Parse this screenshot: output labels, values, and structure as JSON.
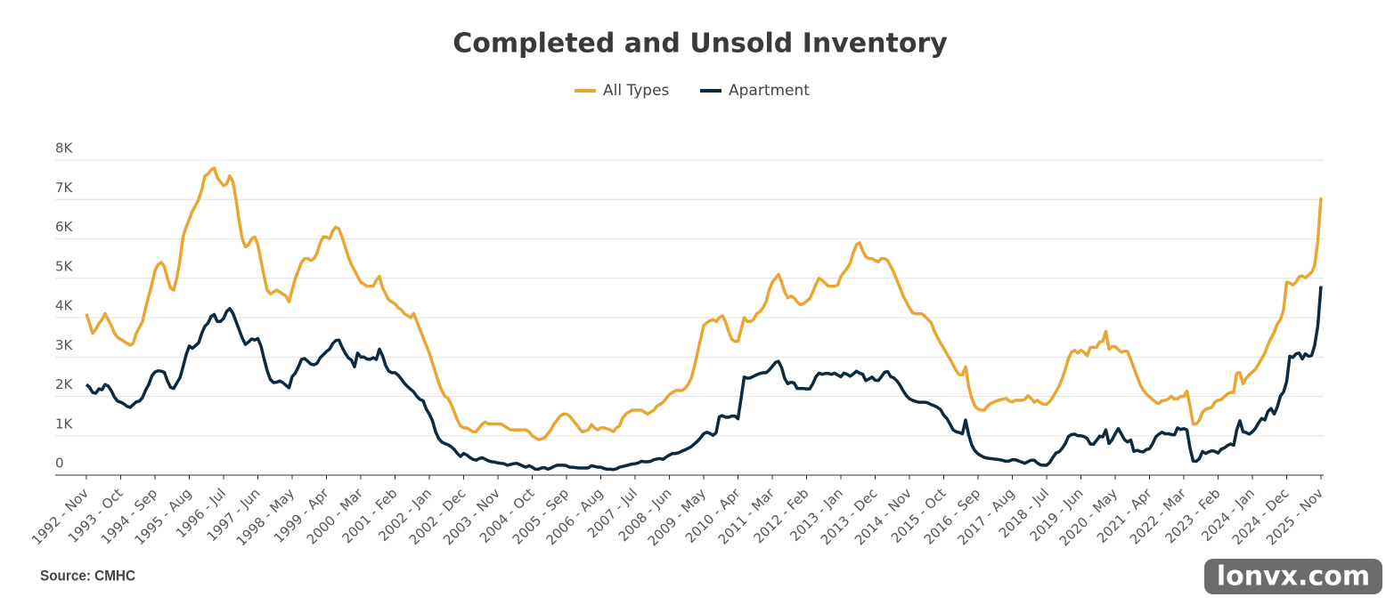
{
  "chart_data": {
    "type": "line",
    "title": "Completed and Unsold Inventory",
    "source": "Source: CMHC",
    "legend": "top",
    "grid": true,
    "categories": [
      "1992 - Nov",
      null,
      null,
      null,
      null,
      null,
      null,
      null,
      null,
      null,
      null,
      "1993 - Oct",
      null,
      null,
      null,
      null,
      null,
      null,
      null,
      null,
      null,
      null,
      "1994 - Sep",
      null,
      null,
      null,
      null,
      null,
      null,
      null,
      null,
      null,
      null,
      "1995 - Aug",
      null,
      null,
      null,
      null,
      null,
      null,
      null,
      null,
      null,
      null,
      "1996 - Jul",
      null,
      null,
      null,
      null,
      null,
      null,
      null,
      null,
      null,
      null,
      "1997 - Jun",
      null,
      null,
      null,
      null,
      null,
      null,
      null,
      null,
      null,
      null,
      "1998 - May",
      null,
      null,
      null,
      null,
      null,
      null,
      null,
      null,
      null,
      null,
      "1999 - Apr",
      null,
      null,
      null,
      null,
      null,
      null,
      null,
      null,
      null,
      null,
      "2000 - Mar",
      null,
      null,
      null,
      null,
      null,
      null,
      null,
      null,
      null,
      null,
      "2001 - Feb",
      null,
      null,
      null,
      null,
      null,
      null,
      null,
      null,
      null,
      null,
      "2002 - Jan",
      null,
      null,
      null,
      null,
      null,
      null,
      null,
      null,
      null,
      null,
      "2002 - Dec",
      null,
      null,
      null,
      null,
      null,
      null,
      null,
      null,
      null,
      null,
      "2003 - Nov",
      null,
      null,
      null,
      null,
      null,
      null,
      null,
      null,
      null,
      null,
      "2004 - Oct",
      null,
      null,
      null,
      null,
      null,
      null,
      null,
      null,
      null,
      null,
      "2005 - Sep",
      null,
      null,
      null,
      null,
      null,
      null,
      null,
      null,
      null,
      null,
      "2006 - Aug",
      null,
      null,
      null,
      null,
      null,
      null,
      null,
      null,
      null,
      null,
      "2007 - Jul",
      null,
      null,
      null,
      null,
      null,
      null,
      null,
      null,
      null,
      null,
      "2008 - Jun",
      null,
      null,
      null,
      null,
      null,
      null,
      null,
      null,
      null,
      null,
      "2009 - May",
      null,
      null,
      null,
      null,
      null,
      null,
      null,
      null,
      null,
      null,
      "2010 - Apr",
      null,
      null,
      null,
      null,
      null,
      null,
      null,
      null,
      null,
      null,
      "2011 - Mar",
      null,
      null,
      null,
      null,
      null,
      null,
      null,
      null,
      null,
      null,
      "2012 - Feb",
      null,
      null,
      null,
      null,
      null,
      null,
      null,
      null,
      null,
      null,
      "2013 - Jan",
      null,
      null,
      null,
      null,
      null,
      null,
      null,
      null,
      null,
      null,
      "2013 - Dec",
      null,
      null,
      null,
      null,
      null,
      null,
      null,
      null,
      null,
      null,
      "2014 - Nov",
      null,
      null,
      null,
      null,
      null,
      null,
      null,
      null,
      null,
      null,
      "2015 - Oct",
      null,
      null,
      null,
      null,
      null,
      null,
      null,
      null,
      null,
      null,
      "2016 - Sep",
      null,
      null,
      null,
      null,
      null,
      null,
      null,
      null,
      null,
      null,
      "2017 - Aug",
      null,
      null,
      null,
      null,
      null,
      null,
      null,
      null,
      null,
      null,
      "2018 - Jul",
      null,
      null,
      null,
      null,
      null,
      null,
      null,
      null,
      null,
      null,
      "2019 - Jun",
      null,
      null,
      null,
      null,
      null,
      null,
      null,
      null,
      null,
      null,
      "2020 - May",
      null,
      null,
      null,
      null,
      null,
      null,
      null,
      null,
      null,
      null,
      "2021 - Apr",
      null,
      null,
      null,
      null,
      null,
      null,
      null,
      null,
      null,
      null,
      "2022 - Mar",
      null,
      null,
      null,
      null,
      null,
      null,
      null,
      null,
      null,
      null,
      "2023 - Feb",
      null,
      null,
      null,
      null,
      null,
      null,
      null,
      null,
      null,
      null,
      "2024 - Jan",
      null,
      null,
      null,
      null,
      null,
      null,
      null,
      null,
      null,
      null,
      "2024 - Dec",
      null,
      null,
      null,
      null,
      null,
      null,
      null,
      null,
      null,
      null,
      "2025 - Nov"
    ],
    "series": [
      {
        "name": "All Types",
        "color": "#e8a735",
        "values": [
          4100,
          3850,
          3600,
          3700,
          3850,
          3950,
          4100,
          3950,
          3800,
          3600,
          3500,
          3450,
          3400,
          3350,
          3300,
          3350,
          3600,
          3750,
          3900,
          4250,
          4550,
          4850,
          5200,
          5350,
          5400,
          5300,
          5000,
          4750,
          4700,
          5000,
          5450,
          6050,
          6300,
          6500,
          6700,
          6850,
          7000,
          7250,
          7600,
          7650,
          7750,
          7800,
          7550,
          7450,
          7350,
          7400,
          7600,
          7450,
          7000,
          6450,
          6000,
          5800,
          5850,
          6000,
          6050,
          5850,
          5450,
          5050,
          4700,
          4600,
          4650,
          4700,
          4650,
          4600,
          4550,
          4400,
          4700,
          5000,
          5200,
          5400,
          5500,
          5500,
          5450,
          5500,
          5650,
          5900,
          6050,
          6050,
          6000,
          6200,
          6300,
          6250,
          6050,
          5800,
          5550,
          5350,
          5200,
          5050,
          4900,
          4850,
          4800,
          4800,
          4800,
          4950,
          5050,
          4750,
          4600,
          4450,
          4400,
          4350,
          4250,
          4200,
          4100,
          4050,
          4000,
          4100,
          3900,
          3700,
          3500,
          3300,
          3100,
          2850,
          2600,
          2350,
          2150,
          2000,
          1950,
          1800,
          1600,
          1400,
          1250,
          1200,
          1200,
          1150,
          1100,
          1100,
          1200,
          1300,
          1350,
          1300,
          1300,
          1300,
          1300,
          1300,
          1250,
          1200,
          1150,
          1150,
          1150,
          1150,
          1150,
          1150,
          1100,
          1000,
          950,
          900,
          920,
          950,
          1050,
          1150,
          1300,
          1400,
          1500,
          1550,
          1550,
          1500,
          1400,
          1300,
          1200,
          1100,
          1120,
          1150,
          1280,
          1200,
          1150,
          1200,
          1200,
          1180,
          1150,
          1100,
          1200,
          1250,
          1450,
          1550,
          1600,
          1650,
          1650,
          1650,
          1650,
          1600,
          1550,
          1600,
          1650,
          1750,
          1800,
          1850,
          1950,
          2050,
          2100,
          2150,
          2150,
          2150,
          2200,
          2300,
          2450,
          2750,
          3100,
          3450,
          3800,
          3870,
          3920,
          3950,
          3900,
          4000,
          4050,
          3900,
          3650,
          3450,
          3400,
          3400,
          3700,
          4000,
          3900,
          3900,
          3950,
          4100,
          4150,
          4250,
          4400,
          4700,
          4900,
          5000,
          5100,
          4900,
          4650,
          4500,
          4550,
          4500,
          4400,
          4330,
          4350,
          4420,
          4480,
          4650,
          4850,
          5000,
          4950,
          4870,
          4800,
          4800,
          4800,
          4830,
          5050,
          5150,
          5250,
          5380,
          5650,
          5850,
          5900,
          5700,
          5550,
          5500,
          5500,
          5450,
          5420,
          5500,
          5500,
          5450,
          5300,
          5150,
          4950,
          4750,
          4550,
          4400,
          4250,
          4120,
          4100,
          4100,
          4100,
          4030,
          3950,
          3870,
          3650,
          3500,
          3350,
          3220,
          3080,
          2950,
          2800,
          2650,
          2550,
          2550,
          2750,
          2250,
          1950,
          1750,
          1680,
          1650,
          1650,
          1750,
          1820,
          1850,
          1890,
          1910,
          1930,
          1950,
          1880,
          1860,
          1900,
          1900,
          1900,
          1920,
          2020,
          1950,
          1850,
          1900,
          1840,
          1800,
          1800,
          1870,
          1980,
          2120,
          2260,
          2450,
          2680,
          2960,
          3120,
          3170,
          3100,
          3170,
          3120,
          3030,
          3240,
          3250,
          3240,
          3380,
          3400,
          3650,
          3200,
          3270,
          3260,
          3190,
          3120,
          3150,
          3140,
          2930,
          2720,
          2510,
          2300,
          2160,
          2060,
          1990,
          1920,
          1850,
          1820,
          1890,
          1900,
          1930,
          2000,
          1930,
          1940,
          2000,
          2000,
          2130,
          1750,
          1300,
          1300,
          1390,
          1600,
          1670,
          1700,
          1720,
          1860,
          1900,
          1920,
          1990,
          2060,
          2100,
          2100,
          2590,
          2600,
          2320,
          2460,
          2550,
          2620,
          2690,
          2820,
          2960,
          3100,
          3310,
          3480,
          3630,
          3840,
          3950,
          4200,
          4900,
          4880,
          4830,
          4900,
          5040,
          5060,
          5010,
          5080,
          5150,
          5330,
          5950,
          7050
        ]
      },
      {
        "name": "Apartment",
        "color": "#0d2a3f",
        "values": [
          2300,
          2230,
          2100,
          2080,
          2190,
          2170,
          2300,
          2260,
          2140,
          1980,
          1880,
          1850,
          1810,
          1750,
          1720,
          1790,
          1860,
          1880,
          1970,
          2160,
          2300,
          2520,
          2620,
          2650,
          2640,
          2610,
          2390,
          2230,
          2200,
          2340,
          2470,
          2750,
          3060,
          3280,
          3220,
          3290,
          3360,
          3600,
          3780,
          3860,
          4030,
          4080,
          3900,
          3900,
          3980,
          4160,
          4230,
          4110,
          3900,
          3690,
          3480,
          3320,
          3380,
          3460,
          3430,
          3470,
          3280,
          2950,
          2650,
          2430,
          2350,
          2360,
          2390,
          2350,
          2280,
          2220,
          2500,
          2590,
          2750,
          2940,
          2960,
          2890,
          2820,
          2800,
          2840,
          2980,
          3060,
          3140,
          3200,
          3340,
          3420,
          3430,
          3250,
          3100,
          2980,
          2920,
          2750,
          3100,
          3000,
          3000,
          2950,
          2940,
          2980,
          2940,
          3200,
          3030,
          2780,
          2640,
          2600,
          2600,
          2540,
          2440,
          2330,
          2250,
          2180,
          2110,
          2000,
          1920,
          1890,
          1680,
          1550,
          1380,
          1100,
          930,
          840,
          800,
          770,
          720,
          650,
          550,
          470,
          550,
          510,
          450,
          400,
          380,
          420,
          440,
          400,
          360,
          340,
          330,
          310,
          300,
          290,
          250,
          270,
          290,
          300,
          270,
          230,
          200,
          240,
          200,
          150,
          150,
          180,
          190,
          150,
          180,
          220,
          250,
          250,
          250,
          240,
          200,
          200,
          190,
          180,
          180,
          180,
          180,
          240,
          220,
          200,
          200,
          170,
          150,
          150,
          140,
          160,
          200,
          220,
          240,
          260,
          280,
          290,
          310,
          350,
          340,
          340,
          350,
          390,
          410,
          420,
          400,
          460,
          510,
          550,
          550,
          570,
          610,
          640,
          680,
          720,
          790,
          860,
          950,
          1050,
          1090,
          1060,
          1010,
          1080,
          1480,
          1510,
          1470,
          1470,
          1500,
          1500,
          1430,
          1950,
          2490,
          2460,
          2470,
          2510,
          2550,
          2580,
          2600,
          2600,
          2670,
          2760,
          2860,
          2890,
          2730,
          2450,
          2320,
          2360,
          2340,
          2200,
          2200,
          2200,
          2190,
          2190,
          2320,
          2500,
          2590,
          2560,
          2580,
          2580,
          2560,
          2590,
          2540,
          2500,
          2590,
          2560,
          2510,
          2570,
          2640,
          2590,
          2560,
          2400,
          2440,
          2490,
          2410,
          2400,
          2500,
          2610,
          2630,
          2500,
          2470,
          2390,
          2280,
          2140,
          2020,
          1940,
          1900,
          1870,
          1850,
          1850,
          1850,
          1830,
          1790,
          1760,
          1720,
          1660,
          1520,
          1440,
          1300,
          1150,
          1100,
          1080,
          1050,
          1400,
          1020,
          760,
          620,
          540,
          490,
          450,
          430,
          420,
          410,
          400,
          390,
          370,
          350,
          360,
          390,
          390,
          360,
          330,
          300,
          340,
          380,
          380,
          310,
          260,
          250,
          250,
          320,
          450,
          560,
          590,
          680,
          800,
          980,
          1030,
          1040,
          1000,
          1000,
          980,
          930,
          790,
          780,
          880,
          990,
          970,
          1150,
          800,
          900,
          1050,
          1180,
          1040,
          900,
          840,
          890,
          600,
          630,
          600,
          590,
          650,
          670,
          800,
          970,
          1040,
          1090,
          1050,
          1050,
          1030,
          1020,
          1200,
          1160,
          1180,
          1150,
          680,
          360,
          350,
          420,
          600,
          550,
          590,
          620,
          600,
          560,
          660,
          690,
          750,
          790,
          760,
          1150,
          1380,
          1100,
          1080,
          1040,
          1100,
          1190,
          1330,
          1440,
          1400,
          1620,
          1690,
          1550,
          1730,
          2010,
          2110,
          2380,
          3020,
          2990,
          3080,
          3100,
          2950,
          3080,
          3020,
          3040,
          3300,
          3800,
          4800
        ]
      }
    ],
    "ylim": [
      0,
      8000
    ],
    "yticks": [
      0,
      {
        "value": 1000,
        "label": "1K"
      },
      {
        "value": 2000,
        "label": "2K"
      },
      {
        "value": 3000,
        "label": "3K"
      },
      {
        "value": 4000,
        "label": "4K"
      },
      {
        "value": 5000,
        "label": "5K"
      },
      {
        "value": 6000,
        "label": "6K"
      },
      {
        "value": 7000,
        "label": "7K"
      },
      {
        "value": 8000,
        "label": "8K"
      }
    ]
  },
  "watermark": "lonvx.com"
}
